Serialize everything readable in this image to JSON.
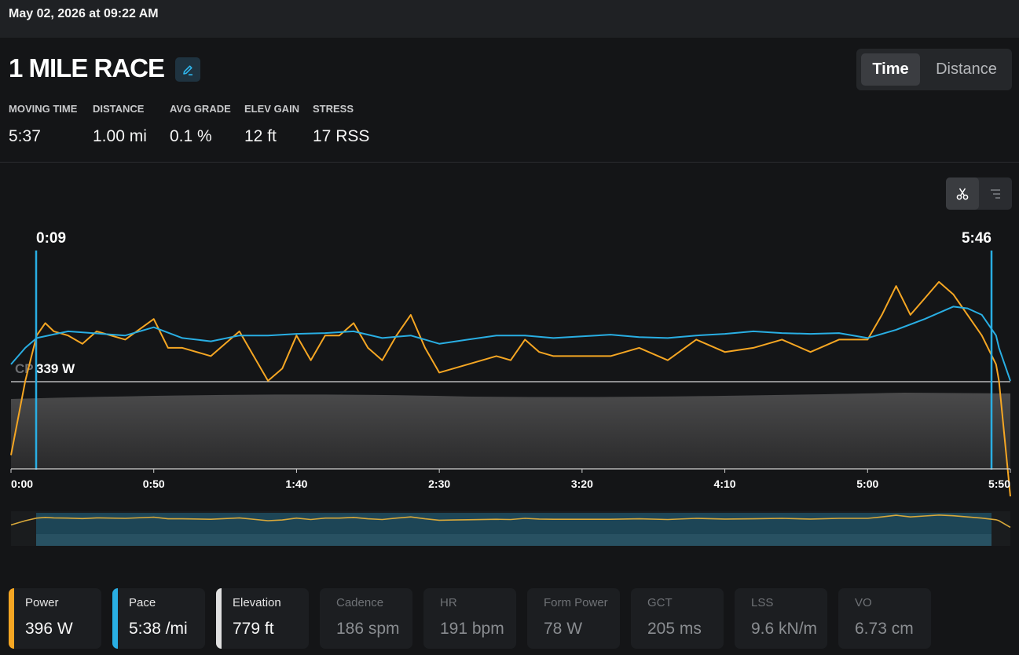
{
  "header": {
    "date": "May 02, 2026 at 09:22 AM"
  },
  "activity": {
    "title": "1 MILE RACE"
  },
  "view_toggle": {
    "options": [
      "Time",
      "Distance"
    ],
    "selected": "Time"
  },
  "stats": [
    {
      "label": "MOVING TIME",
      "value": "5:37"
    },
    {
      "label": "DISTANCE",
      "value": "1.00 mi"
    },
    {
      "label": "AVG GRADE",
      "value": "0.1 %"
    },
    {
      "label": "ELEV GAIN",
      "value": "12 ft"
    },
    {
      "label": "STRESS",
      "value": "17 RSS"
    }
  ],
  "toolbar": {
    "icons": [
      "scissors-icon",
      "menu-lines-icon"
    ]
  },
  "chart_data": {
    "type": "line",
    "x_unit": "elapsed time",
    "x_ticks": [
      "0:00",
      "0:50",
      "1:40",
      "2:30",
      "3:20",
      "4:10",
      "5:00",
      "5:50"
    ],
    "selection": {
      "start": "0:09",
      "end": "5:46"
    },
    "reference_line": {
      "label": "CP",
      "value": "339 W"
    },
    "series": [
      {
        "name": "Power",
        "color": "#f5a623",
        "points_time_s": [
          0,
          5,
          9,
          12,
          15,
          20,
          25,
          30,
          40,
          50,
          55,
          60,
          70,
          80,
          90,
          95,
          100,
          105,
          110,
          115,
          120,
          125,
          130,
          135,
          140,
          145,
          150,
          155,
          160,
          170,
          175,
          180,
          185,
          190,
          200,
          210,
          220,
          230,
          240,
          250,
          260,
          270,
          280,
          290,
          300,
          305,
          310,
          315,
          320,
          325,
          330,
          335,
          340,
          345,
          346,
          350
        ],
        "values_w": [
          250,
          340,
          395,
          410,
          400,
          395,
          385,
          400,
          390,
          415,
          380,
          380,
          370,
          400,
          340,
          355,
          395,
          365,
          395,
          395,
          410,
          380,
          365,
          395,
          420,
          380,
          350,
          355,
          360,
          370,
          365,
          390,
          375,
          370,
          370,
          370,
          380,
          365,
          390,
          375,
          380,
          390,
          375,
          390,
          390,
          420,
          455,
          420,
          440,
          460,
          445,
          420,
          395,
          360,
          340,
          200
        ]
      },
      {
        "name": "Pace",
        "color": "#29aee3",
        "points_time_s": [
          0,
          5,
          9,
          20,
          40,
          50,
          60,
          70,
          80,
          90,
          100,
          110,
          120,
          130,
          140,
          150,
          160,
          170,
          180,
          190,
          200,
          210,
          220,
          230,
          240,
          250,
          260,
          270,
          280,
          290,
          300,
          310,
          320,
          330,
          335,
          340,
          345,
          346,
          350
        ],
        "values_w": [
          360,
          380,
          392,
          400,
          395,
          405,
          392,
          388,
          395,
          395,
          397,
          398,
          400,
          392,
          395,
          385,
          390,
          395,
          395,
          392,
          394,
          396,
          393,
          392,
          395,
          397,
          400,
          398,
          397,
          398,
          392,
          402,
          415,
          430,
          428,
          420,
          395,
          380,
          340
        ]
      }
    ],
    "elevation": {
      "name": "Elevation",
      "color": "#8c8c8c"
    }
  },
  "metric_cards": [
    {
      "label": "Power",
      "value": "396 W",
      "active": true,
      "color": "#f5a623"
    },
    {
      "label": "Pace",
      "value": "5:38 /mi",
      "active": true,
      "color": "#29aee3"
    },
    {
      "label": "Elevation",
      "value": "779 ft",
      "active": true,
      "color": "#e0e0e0"
    },
    {
      "label": "Cadence",
      "value": "186 spm",
      "active": false
    },
    {
      "label": "HR",
      "value": "191 bpm",
      "active": false
    },
    {
      "label": "Form Power",
      "value": "78 W",
      "active": false
    },
    {
      "label": "GCT",
      "value": "205 ms",
      "active": false
    },
    {
      "label": "LSS",
      "value": "9.6 kN/m",
      "active": false
    },
    {
      "label": "VO",
      "value": "6.73 cm",
      "active": false
    }
  ]
}
